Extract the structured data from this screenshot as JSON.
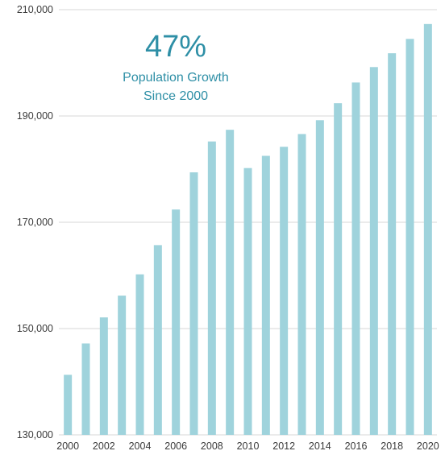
{
  "chart_data": {
    "type": "bar",
    "title": "",
    "xlabel": "",
    "ylabel": "",
    "ylim": [
      130000,
      210000
    ],
    "yticks": [
      130000,
      150000,
      170000,
      190000,
      210000
    ],
    "ytick_labels": [
      "130,000",
      "150,000",
      "170,000",
      "190,000",
      "210,000"
    ],
    "xtick_labels": [
      "2000",
      "2002",
      "2004",
      "2006",
      "2008",
      "2010",
      "2012",
      "2014",
      "2016",
      "2018",
      "2020"
    ],
    "grid": true,
    "bar_color": "#9fd3dc",
    "categories": [
      "2000",
      "2001",
      "2002",
      "2003",
      "2004",
      "2005",
      "2006",
      "2007",
      "2008",
      "2009",
      "2010",
      "2011",
      "2012",
      "2013",
      "2014",
      "2015",
      "2016",
      "2017",
      "2018",
      "2019",
      "2020"
    ],
    "values": [
      141300,
      147200,
      152100,
      156200,
      160200,
      165700,
      172400,
      179400,
      185200,
      187400,
      180200,
      182500,
      184200,
      186600,
      189200,
      192400,
      196300,
      199200,
      201800,
      204500,
      207300
    ],
    "annotation": {
      "headline": "47%",
      "line1": "Population Growth",
      "line2": "Since 2000",
      "color": "#2e8fa6"
    }
  }
}
